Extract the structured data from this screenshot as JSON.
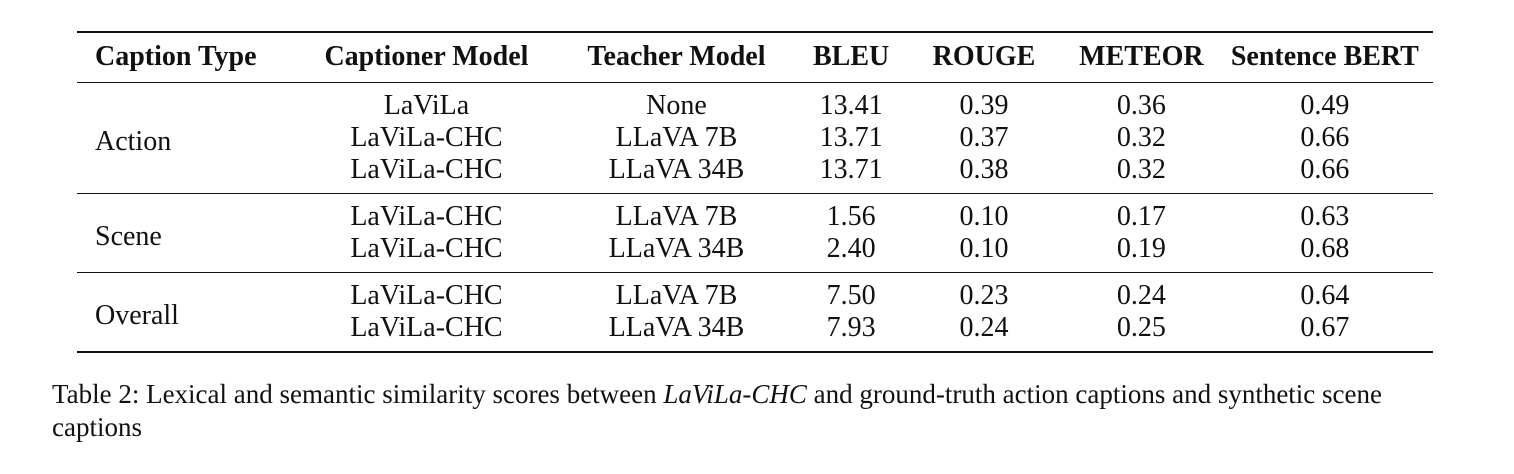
{
  "table": {
    "headers": [
      "Caption Type",
      "Captioner Model",
      "Teacher Model",
      "BLEU",
      "ROUGE",
      "METEOR",
      "Sentence BERT"
    ],
    "groups": [
      {
        "type": "Action",
        "rows": [
          [
            "LaViLa",
            "None",
            "13.41",
            "0.39",
            "0.36",
            "0.49"
          ],
          [
            "LaViLa-CHC",
            "LLaVA 7B",
            "13.71",
            "0.37",
            "0.32",
            "0.66"
          ],
          [
            "LaViLa-CHC",
            "LLaVA 34B",
            "13.71",
            "0.38",
            "0.32",
            "0.66"
          ]
        ]
      },
      {
        "type": "Scene",
        "rows": [
          [
            "LaViLa-CHC",
            "LLaVA 7B",
            "1.56",
            "0.10",
            "0.17",
            "0.63"
          ],
          [
            "LaViLa-CHC",
            "LLaVA 34B",
            "2.40",
            "0.10",
            "0.19",
            "0.68"
          ]
        ]
      },
      {
        "type": "Overall",
        "rows": [
          [
            "LaViLa-CHC",
            "LLaVA 7B",
            "7.50",
            "0.23",
            "0.24",
            "0.64"
          ],
          [
            "LaViLa-CHC",
            "LLaVA 34B",
            "7.93",
            "0.24",
            "0.25",
            "0.67"
          ]
        ]
      }
    ]
  },
  "caption": {
    "prefix": "Table 2: Lexical and semantic similarity scores between ",
    "emphasis": "LaViLa-CHC",
    "suffix": " and ground-truth action captions and synthetic scene captions"
  }
}
